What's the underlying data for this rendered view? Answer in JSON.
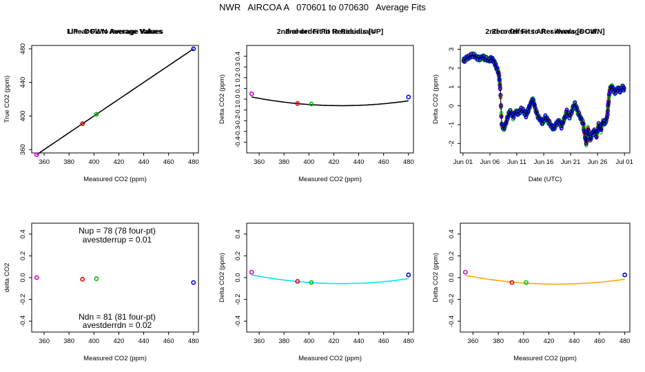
{
  "figure": {
    "title": "NWR   AIRCOA A   070601 to 070630   Average Fits"
  },
  "chart_data": [
    {
      "type": "scatter",
      "title": "Linear Fit to Average Values",
      "xlabel": "Measured CO2 (ppm)",
      "ylabel": "True CO2 (ppm)",
      "xlim": [
        350,
        484
      ],
      "ylim": [
        356,
        484
      ],
      "xticks": [
        360,
        380,
        400,
        420,
        440,
        460,
        480
      ],
      "yticks": [
        360,
        400,
        440,
        480
      ],
      "points": [
        {
          "x": 354.0,
          "y": 354.0,
          "color": "#cc00cc"
        },
        {
          "x": 390.8,
          "y": 390.8,
          "color": "#dd0000"
        },
        {
          "x": 402.0,
          "y": 402.0,
          "color": "#00bb00"
        },
        {
          "x": 480.0,
          "y": 480.0,
          "color": "#0000dd"
        }
      ],
      "fit": {
        "kind": "line",
        "x0": 354,
        "x1": 480,
        "a": 0,
        "b": 1,
        "c": 0,
        "color": "#000000"
      }
    },
    {
      "type": "scatter",
      "title": "2nd-order Fit to Residuals",
      "xlabel": "Measured CO2 (ppm)",
      "ylabel": "Delta CO2 (ppm)",
      "xlim": [
        350,
        484
      ],
      "ylim": [
        -0.5,
        0.5
      ],
      "xticks": [
        360,
        380,
        400,
        420,
        440,
        460,
        480
      ],
      "yticks": [
        -0.4,
        -0.3,
        -0.2,
        -0.1,
        0.0,
        0.1,
        0.2,
        0.3,
        0.4
      ],
      "points": [
        {
          "x": 354.0,
          "y": 0.05,
          "color": "#cc00cc"
        },
        {
          "x": 390.8,
          "y": -0.04,
          "color": "#dd0000"
        },
        {
          "x": 402.0,
          "y": -0.045,
          "color": "#00bb00"
        },
        {
          "x": 480.0,
          "y": 0.02,
          "color": "#0000dd"
        }
      ],
      "fit": {
        "kind": "quad",
        "x0": 354,
        "x1": 480,
        "vertex": 426,
        "ymin": -0.06,
        "k": 1.55e-05,
        "color": "#000000"
      }
    },
    {
      "type": "line",
      "title": "Zero Offsets After Average Cal.",
      "xlabel": "Date (UTC)",
      "ylabel": "Delta CO2 (ppm)",
      "xlim": [
        -0.5,
        31.0
      ],
      "ylim": [
        -2.5,
        3.2
      ],
      "xticks": [
        0,
        5,
        10,
        15,
        20,
        25,
        30
      ],
      "xticklabels": [
        "Jun 01",
        "Jun 06",
        "Jun 11",
        "Jun 16",
        "Jun 21",
        "Jun 26",
        "Jul 01"
      ],
      "yticks": [
        -2,
        -1,
        0,
        1,
        2,
        3
      ],
      "series": [
        {
          "name": "offset",
          "color": "#000000",
          "x": [
            0.1,
            0.6,
            1.2,
            1.8,
            2.4,
            3.0,
            3.6,
            4.2,
            4.8,
            5.3,
            5.7,
            6.0,
            6.4,
            6.7,
            6.9,
            7.2,
            7.6,
            8.0,
            8.4,
            8.8,
            9.3,
            9.8,
            10.3,
            10.8,
            11.3,
            11.7,
            12.0,
            12.3,
            12.7,
            13.0,
            13.3,
            13.8,
            14.3,
            14.8,
            15.3,
            15.8,
            16.3,
            16.8,
            17.3,
            17.8,
            18.3,
            18.8,
            19.3,
            19.8,
            20.3,
            20.8,
            21.3,
            21.8,
            22.3,
            22.6,
            22.9,
            23.2,
            23.6,
            24.0,
            24.4,
            24.8,
            25.2,
            25.6,
            26.0,
            26.4,
            26.8,
            27.0,
            27.3,
            27.7,
            28.2,
            28.7,
            29.2,
            29.7,
            30.0
          ],
          "y": [
            2.4,
            2.5,
            2.6,
            2.7,
            2.6,
            2.5,
            2.6,
            2.5,
            2.4,
            2.5,
            2.4,
            2.2,
            1.9,
            1.6,
            1.0,
            -1.0,
            -1.2,
            -0.9,
            -0.5,
            -0.3,
            -0.6,
            -0.3,
            -0.4,
            -0.2,
            -0.3,
            -0.5,
            -0.3,
            -0.1,
            0.2,
            0.3,
            0.0,
            -0.5,
            -0.7,
            -0.9,
            -0.6,
            -0.8,
            -1.0,
            -1.2,
            -1.0,
            -0.8,
            -1.1,
            -0.7,
            -0.3,
            -0.6,
            -0.2,
            0.1,
            -0.3,
            -0.6,
            -0.9,
            -1.5,
            -2.0,
            -1.2,
            -1.8,
            -1.5,
            -1.3,
            -1.6,
            -1.0,
            -1.3,
            -0.8,
            -0.9,
            -0.6,
            0.1,
            0.9,
            1.0,
            0.7,
            0.9,
            0.8,
            1.0,
            0.8
          ]
        }
      ],
      "markers": {
        "colors": [
          "#cc00cc",
          "#dd0000",
          "#00bb00",
          "#0000dd"
        ]
      }
    },
    {
      "type": "scatter",
      "title": "UP - DOWN Average Values",
      "xlabel": "Measured CO2 (ppm)",
      "ylabel": "delta CO2",
      "xlim": [
        350,
        484
      ],
      "ylim": [
        -0.5,
        0.5
      ],
      "xticks": [
        360,
        380,
        400,
        420,
        440,
        460,
        480
      ],
      "yticks": [
        -0.4,
        -0.2,
        0.0,
        0.2,
        0.4
      ],
      "points": [
        {
          "x": 354.0,
          "y": 0.0,
          "color": "#cc00cc"
        },
        {
          "x": 390.8,
          "y": -0.015,
          "color": "#dd0000"
        },
        {
          "x": 402.0,
          "y": -0.01,
          "color": "#00bb00"
        },
        {
          "x": 480.0,
          "y": -0.045,
          "color": "#0000dd"
        }
      ],
      "annotations": [
        "Nup = 78 (78 four-pt)",
        "avestderrup =  0.01",
        "Ndn = 81 (81 four-pt)",
        "avestderrdn =  0.02"
      ]
    },
    {
      "type": "scatter",
      "title": "2nd-order Fit to Residuals [UP]",
      "xlabel": "Measured CO2 (ppm)",
      "ylabel": "Delta CO2 (ppm)",
      "xlim": [
        350,
        484
      ],
      "ylim": [
        -0.5,
        0.5
      ],
      "xticks": [
        360,
        380,
        400,
        420,
        440,
        460,
        480
      ],
      "yticks": [
        -0.4,
        -0.2,
        0.0,
        0.2,
        0.4
      ],
      "points": [
        {
          "x": 354.0,
          "y": 0.05,
          "color": "#cc00cc"
        },
        {
          "x": 390.8,
          "y": -0.035,
          "color": "#dd0000"
        },
        {
          "x": 402.0,
          "y": -0.045,
          "color": "#00bb00"
        },
        {
          "x": 480.0,
          "y": 0.025,
          "color": "#0000dd"
        }
      ],
      "fit": {
        "kind": "quad",
        "x0": 354,
        "x1": 480,
        "vertex": 426,
        "ymin": -0.055,
        "k": 1.55e-05,
        "color": "#00e5ee"
      }
    },
    {
      "type": "scatter",
      "title": "2nd-order Fit to Residuals [DOWN]",
      "xlabel": "Measured CO2 (ppm)",
      "ylabel": "Delta CO2 (ppm)",
      "xlim": [
        350,
        484
      ],
      "ylim": [
        -0.5,
        0.5
      ],
      "xticks": [
        360,
        380,
        400,
        420,
        440,
        460,
        480
      ],
      "yticks": [
        -0.4,
        -0.2,
        0.0,
        0.2,
        0.4
      ],
      "points": [
        {
          "x": 354.0,
          "y": 0.05,
          "color": "#cc00cc"
        },
        {
          "x": 390.8,
          "y": -0.045,
          "color": "#dd0000"
        },
        {
          "x": 402.0,
          "y": -0.045,
          "color": "#00bb00"
        },
        {
          "x": 480.0,
          "y": 0.025,
          "color": "#0000dd"
        }
      ],
      "fit": {
        "kind": "quad",
        "x0": 354,
        "x1": 480,
        "vertex": 426,
        "ymin": -0.06,
        "k": 1.55e-05,
        "color": "#ffa500"
      }
    }
  ]
}
